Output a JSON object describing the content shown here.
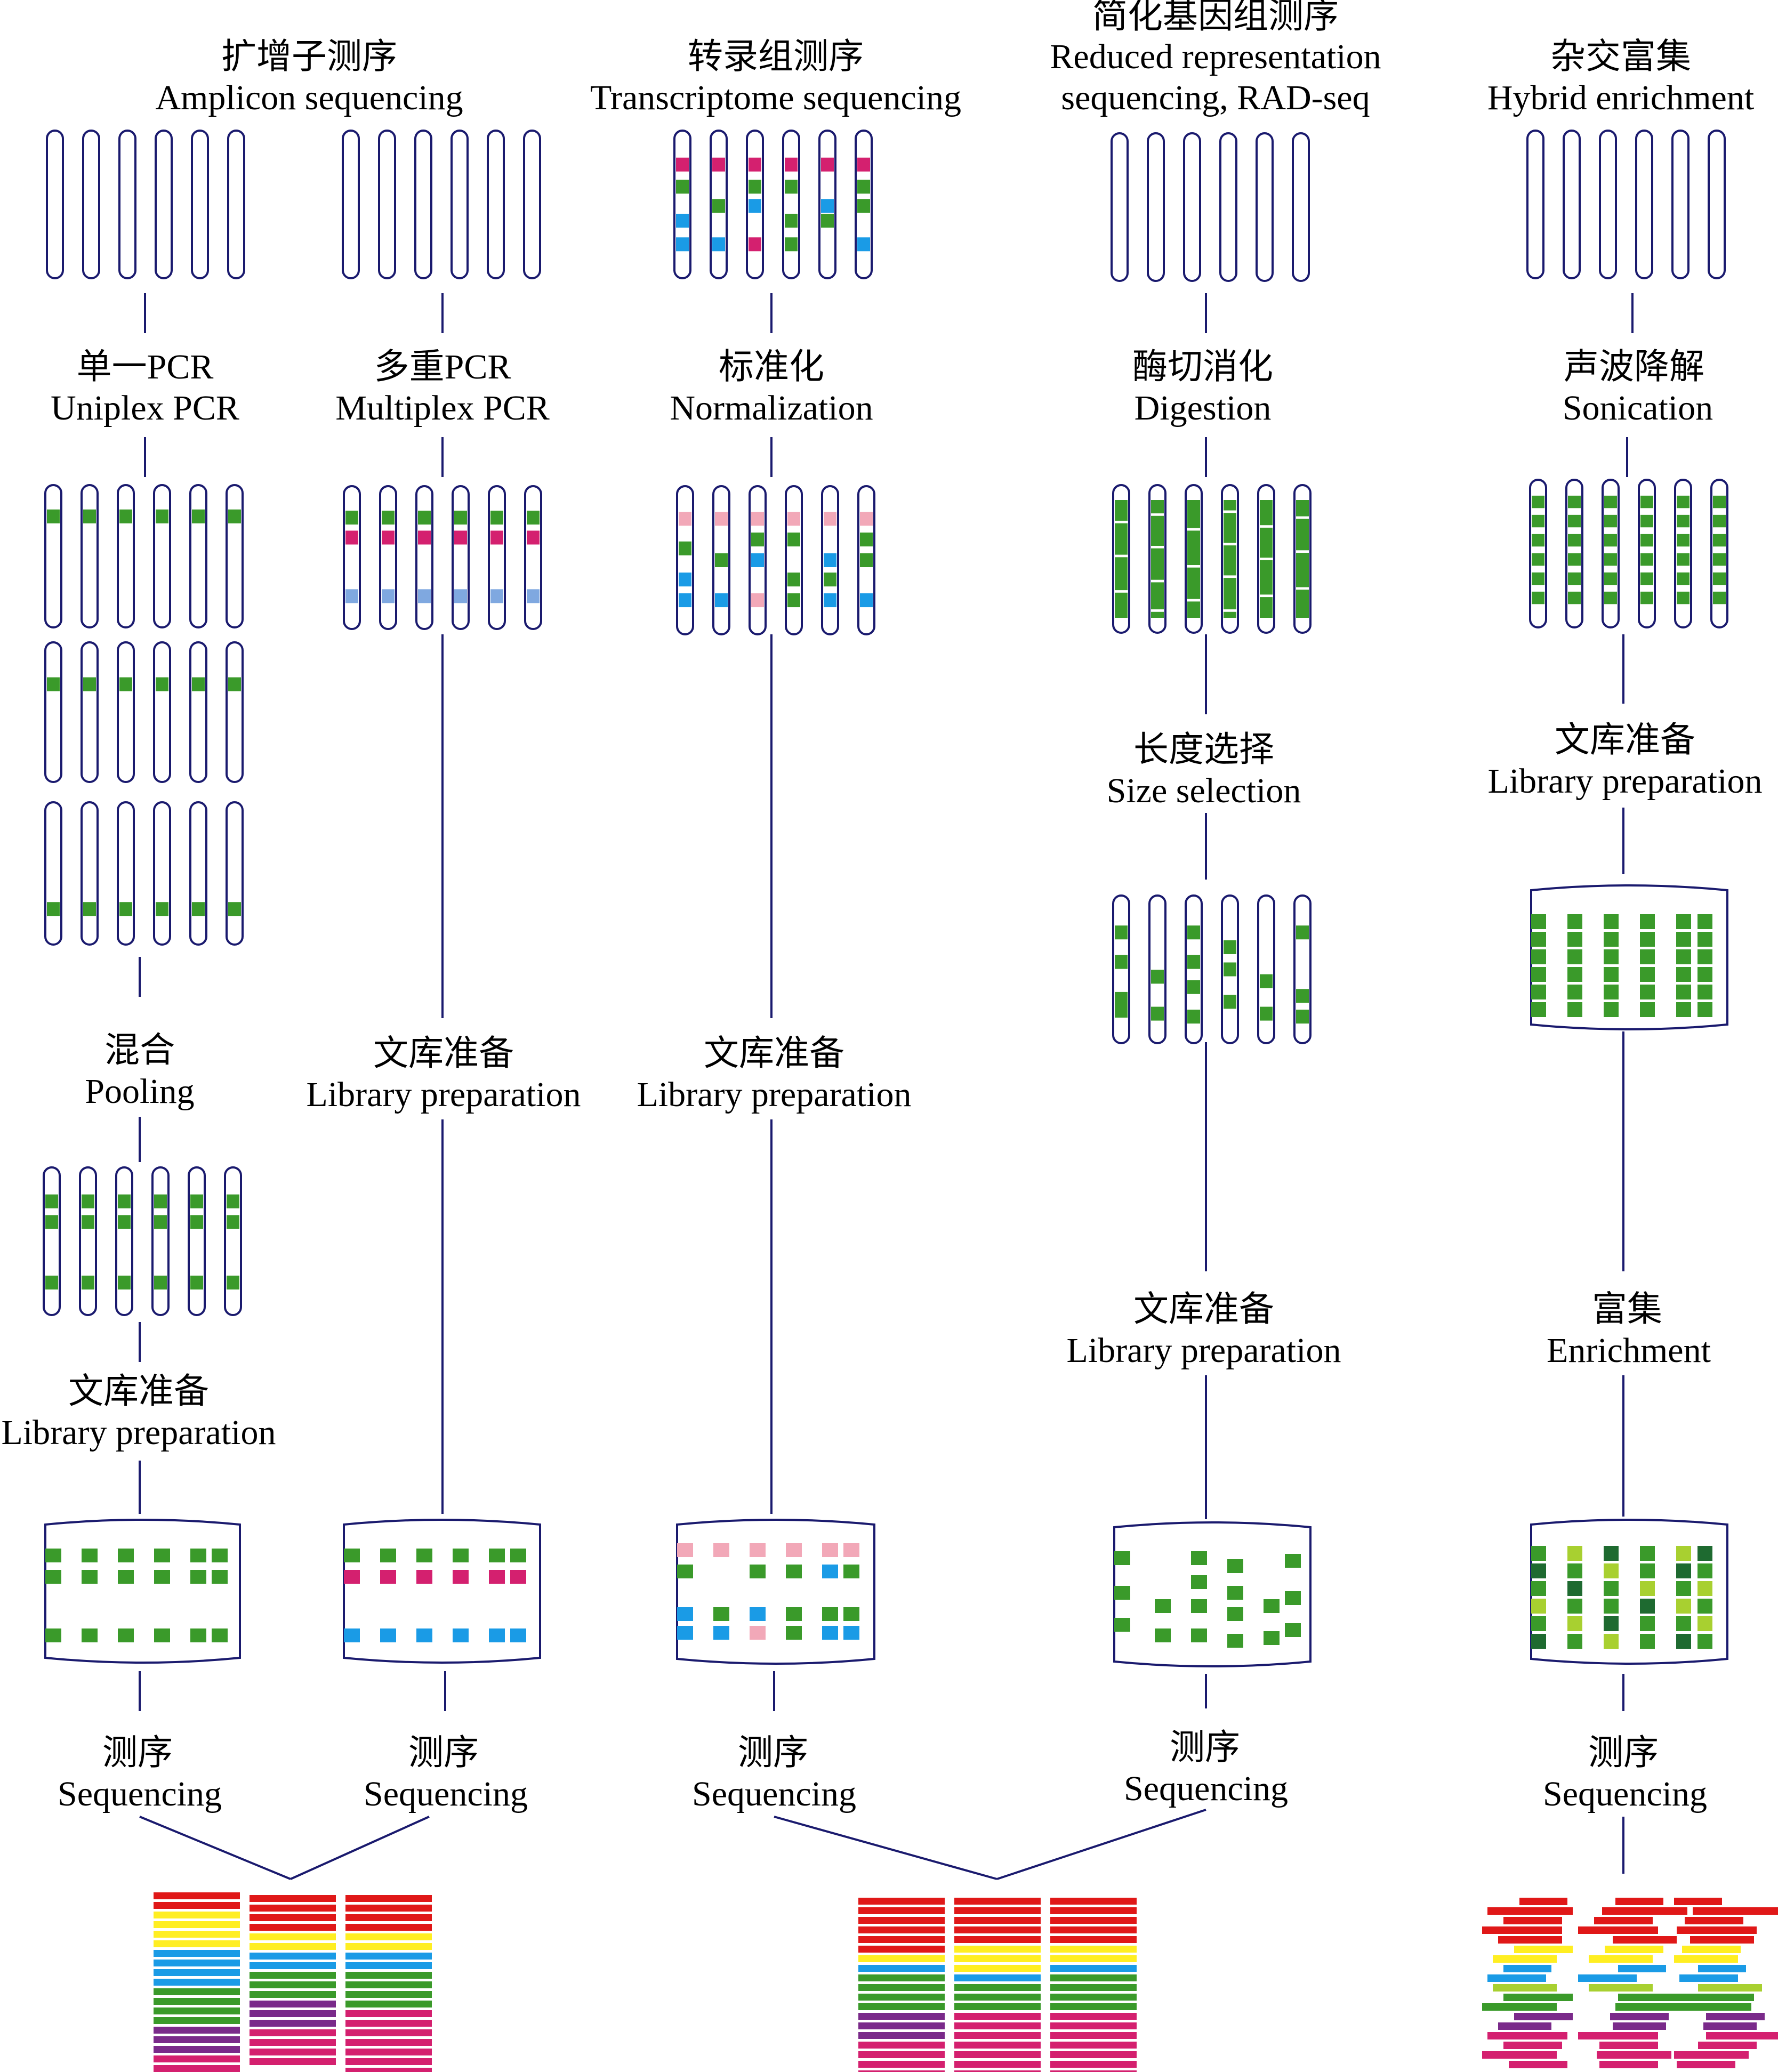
{
  "columns": [
    {
      "id": "amplicon",
      "title_zh": "扩增子测序",
      "title_en": "Amplicon sequencing"
    },
    {
      "id": "transcriptome",
      "title_zh": "转录组测序",
      "title_en": "Transcriptome sequencing"
    },
    {
      "id": "rad",
      "title_zh": "简化基因组测序",
      "title_en_1": "Reduced representation",
      "title_en_2": "sequencing, RAD-seq"
    },
    {
      "id": "hybrid",
      "title_zh": "杂交富集",
      "title_en": "Hybrid enrichment"
    }
  ],
  "steps": {
    "uniplex": {
      "zh": "单一PCR",
      "en": "Uniplex PCR"
    },
    "multiplex": {
      "zh": "多重PCR",
      "en": "Multiplex PCR"
    },
    "normalization": {
      "zh": "标准化",
      "en": "Normalization"
    },
    "digestion": {
      "zh": "酶切消化",
      "en": "Digestion"
    },
    "sonication": {
      "zh": "声波降解",
      "en": "Sonication"
    },
    "pooling": {
      "zh": "混合",
      "en": "Pooling"
    },
    "size_selection": {
      "zh": "长度选择",
      "en": "Size selection"
    },
    "library_preparation": {
      "zh": "文库准备",
      "en": "Library preparation"
    },
    "enrichment": {
      "zh": "富集",
      "en": "Enrichment"
    },
    "sequencing": {
      "zh": "测序",
      "en": "Sequencing"
    }
  },
  "colors": {
    "outline": "#1a1a6e",
    "green": "#3a9a2a",
    "magenta": "#d4206f",
    "blue": "#1a9be6",
    "light_blue": "#7fa8e0",
    "pink": "#f2a8b8",
    "dark_green": "#1e6a30",
    "lime": "#a8d030",
    "red": "#e01818",
    "yellow": "#ffee22",
    "purple": "#7a2a8a"
  }
}
